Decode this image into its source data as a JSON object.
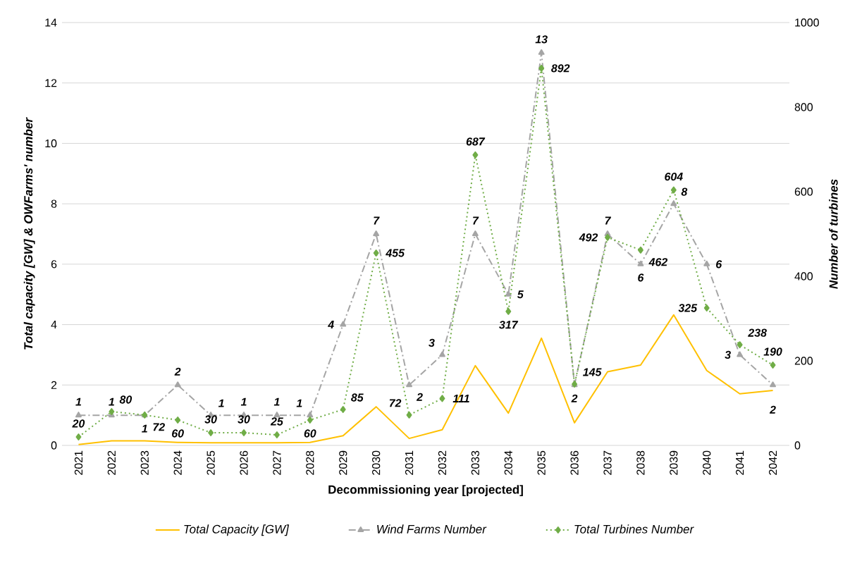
{
  "chart_data": {
    "type": "line",
    "categories": [
      "2021",
      "2022",
      "2023",
      "2024",
      "2025",
      "2026",
      "2027",
      "2028",
      "2029",
      "2030",
      "2031",
      "2032",
      "2033",
      "2034",
      "2035",
      "2036",
      "2037",
      "2038",
      "2039",
      "2040",
      "2041",
      "2042"
    ],
    "xlabel": "Decommissioning year [projected]",
    "ylabel": "Total capacity [GW] & OWFarms' number",
    "y2label": "Number of turbines",
    "ylim": [
      0,
      14
    ],
    "yticks": [
      0,
      2,
      4,
      6,
      8,
      10,
      12,
      14
    ],
    "y2lim": [
      0,
      1000
    ],
    "y2ticks": [
      0,
      200,
      400,
      600,
      800,
      1000
    ],
    "grid": "y",
    "legend": "bottom",
    "series": [
      {
        "name": "Total Capacity [GW]",
        "color": "#ffc000",
        "marker": "none",
        "line_style": "solid",
        "values": [
          0.03,
          0.15,
          0.15,
          0.1,
          0.09,
          0.09,
          0.09,
          0.1,
          0.32,
          1.28,
          0.23,
          0.52,
          2.64,
          1.07,
          3.55,
          0.75,
          2.44,
          2.66,
          4.32,
          2.48,
          1.71,
          1.82
        ]
      },
      {
        "name": "Wind Farms Number",
        "color": "#a5a5a5",
        "marker": "triangle",
        "line_style": "dashed",
        "values": [
          1,
          1,
          1,
          2,
          1,
          1,
          1,
          1,
          4,
          7,
          2,
          3,
          7,
          5,
          13,
          2,
          7,
          6,
          8,
          6,
          3,
          2
        ],
        "value_labels": [
          "1",
          "1",
          "1",
          "2",
          "1",
          "1",
          "1",
          "1",
          "4",
          "7",
          "2",
          "3",
          "7",
          "5",
          "13",
          "2",
          "7",
          "6",
          "8",
          "6",
          "3",
          "2"
        ]
      },
      {
        "name": "Total Turbines Number",
        "color": "#70ad47",
        "marker": "diamond",
        "line_style": "dotted",
        "axis": "y2",
        "values": [
          20,
          80,
          72,
          60,
          30,
          30,
          25,
          60,
          85,
          455,
          72,
          111,
          687,
          317,
          892,
          145,
          492,
          462,
          604,
          325,
          238,
          190
        ],
        "value_labels": [
          "20",
          "80",
          "72",
          "60",
          "30",
          "30",
          "25",
          "60",
          "85",
          "455",
          "72",
          "111",
          "687",
          "317",
          "892",
          "145",
          "492",
          "462",
          "604",
          "325",
          "238",
          "190"
        ]
      }
    ]
  }
}
